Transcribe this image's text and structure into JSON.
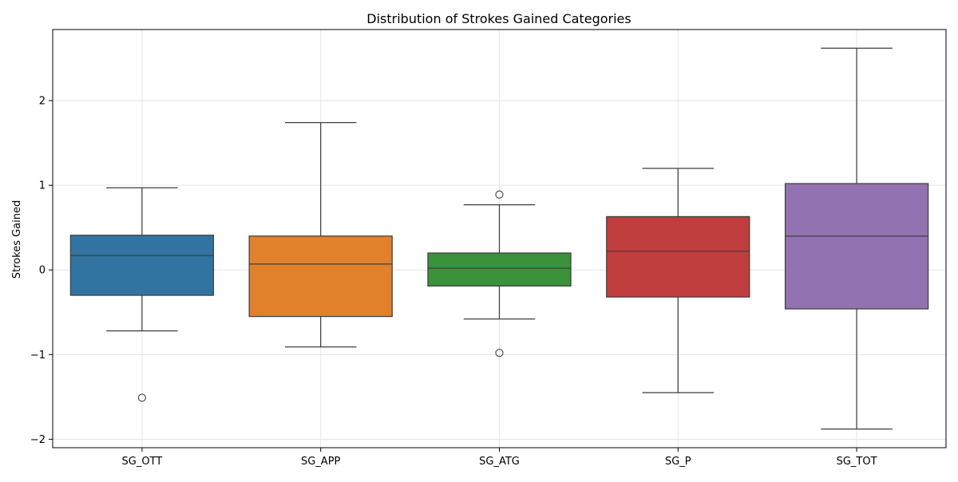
{
  "chart_data": {
    "type": "box",
    "title": "Distribution of Strokes Gained Categories",
    "xlabel": "",
    "ylabel": "Strokes Gained",
    "ylim": [
      -2.1,
      2.84
    ],
    "yticks": [
      -2,
      -1,
      0,
      1,
      2
    ],
    "ytick_labels": [
      "−2",
      "−1",
      "0",
      "1",
      "2"
    ],
    "grid": true,
    "categories": [
      "SG_OTT",
      "SG_APP",
      "SG_ATG",
      "SG_P",
      "SG_TOT"
    ],
    "boxes": [
      {
        "category": "SG_OTT",
        "color": "#3274a1",
        "whisker_low": -0.72,
        "q1": -0.3,
        "median": 0.17,
        "q3": 0.41,
        "whisker_high": 0.97,
        "outliers": [
          -1.51
        ]
      },
      {
        "category": "SG_APP",
        "color": "#e1812c",
        "whisker_low": -0.91,
        "q1": -0.55,
        "median": 0.07,
        "q3": 0.4,
        "whisker_high": 1.74,
        "outliers": []
      },
      {
        "category": "SG_ATG",
        "color": "#3a923a",
        "whisker_low": -0.58,
        "q1": -0.19,
        "median": 0.02,
        "q3": 0.2,
        "whisker_high": 0.77,
        "outliers": [
          0.89,
          -0.98
        ]
      },
      {
        "category": "SG_P",
        "color": "#c03d3e",
        "whisker_low": -1.45,
        "q1": -0.32,
        "median": 0.22,
        "q3": 0.63,
        "whisker_high": 1.2,
        "outliers": []
      },
      {
        "category": "SG_TOT",
        "color": "#9372b2",
        "whisker_low": -1.88,
        "q1": -0.46,
        "median": 0.4,
        "q3": 1.02,
        "whisker_high": 2.62,
        "outliers": []
      }
    ]
  }
}
